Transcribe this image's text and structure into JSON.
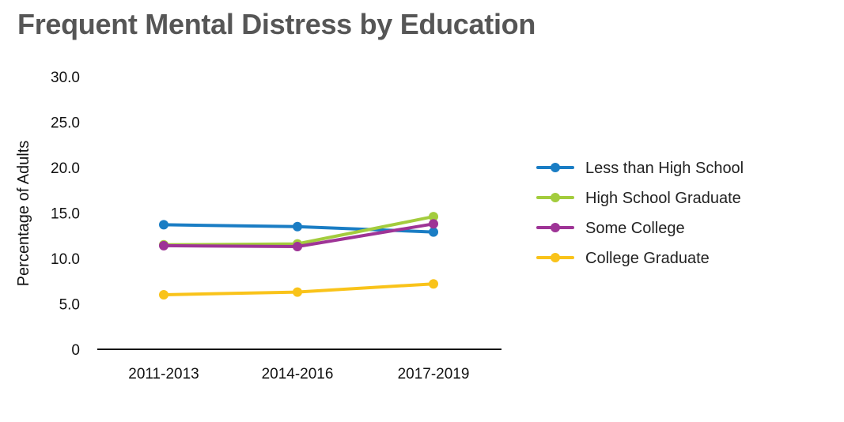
{
  "chart_data": {
    "type": "line",
    "title": "Frequent Mental Distress by Education",
    "xlabel": "",
    "ylabel": "Percentage of Adults",
    "categories": [
      "2011-2013",
      "2014-2016",
      "2017-2019"
    ],
    "ylim": [
      0,
      30
    ],
    "yticks": [
      0,
      5,
      10,
      15,
      20,
      25,
      30
    ],
    "ytick_labels": [
      "0",
      "5.0",
      "10.0",
      "15.0",
      "20.0",
      "25.0",
      "30.0"
    ],
    "grid": false,
    "legend_position": "right",
    "series": [
      {
        "name": "Less than High School",
        "color": "#1a7dc4",
        "values": [
          13.7,
          13.5,
          12.9
        ]
      },
      {
        "name": "High School Graduate",
        "color": "#a3cc3d",
        "values": [
          11.5,
          11.6,
          14.6
        ]
      },
      {
        "name": "Some College",
        "color": "#9e3496",
        "values": [
          11.4,
          11.3,
          13.8
        ]
      },
      {
        "name": "College Graduate",
        "color": "#f9c31a",
        "values": [
          6.0,
          6.3,
          7.2
        ]
      }
    ]
  }
}
